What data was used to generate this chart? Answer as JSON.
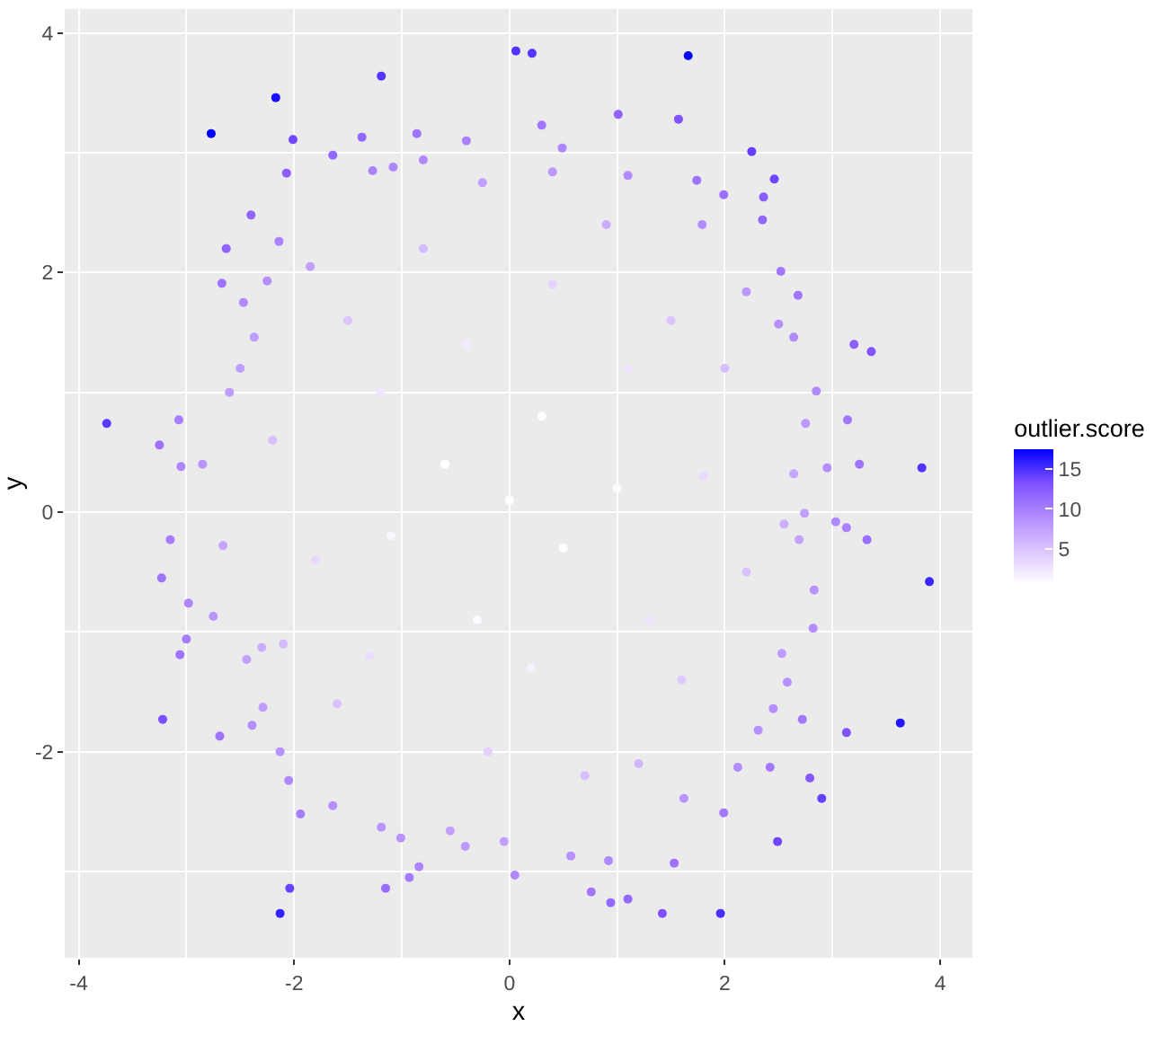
{
  "chart_data": {
    "type": "scatter",
    "xlabel": "x",
    "ylabel": "y",
    "clabel": "outlier.score",
    "xlim": [
      -4.13,
      4.3
    ],
    "ylim": [
      -3.72,
      4.2
    ],
    "xticks": [
      -4,
      -2,
      0,
      2,
      4
    ],
    "yticks": [
      -2,
      0,
      2,
      4
    ],
    "clim": [
      0.6,
      17.5
    ],
    "cticks": [
      5,
      10,
      15
    ],
    "grid": true,
    "marker": "circle",
    "series": [
      {
        "x": [
          0.0,
          0.5,
          -0.6,
          0.3,
          -0.3,
          1.0,
          -1.1,
          0.2,
          -0.4,
          1.3,
          -1.2,
          1.1,
          -1.3,
          1.8,
          -1.8,
          0.4,
          -0.2,
          1.6,
          -1.5,
          1.5,
          -1.6,
          2.2,
          -2.2,
          0.7,
          -0.8,
          2.0,
          -2.1,
          1.2,
          0.9,
          -2.5,
          -3.74,
          -2.77,
          -2.17,
          -1.19,
          0.06,
          0.21,
          -2.01,
          -1.64,
          -2.07,
          -1.37,
          -0.86,
          -0.4,
          0.3,
          -2.63,
          -2.67,
          -2.4,
          -2.14,
          -3.07,
          -3.25,
          -3.05,
          -2.85,
          -2.6,
          -2.47,
          -2.37,
          -2.25,
          -1.85,
          -1.27,
          -1.08,
          -0.8,
          -0.25,
          0.4,
          0.49,
          1.66,
          1.01,
          1.57,
          2.25,
          2.46,
          2.36,
          2.35,
          1.74,
          1.99,
          1.79,
          1.1,
          2.52,
          2.68,
          2.2,
          3.2,
          3.36,
          2.64,
          2.5,
          2.85,
          3.14,
          3.25,
          3.83,
          2.95,
          2.64,
          2.75,
          2.74,
          -3.15,
          -3.23,
          -2.98,
          -2.75,
          -3.0,
          -3.06,
          -3.22,
          -2.69,
          -2.39,
          -2.29,
          -2.13,
          -2.05,
          -1.94,
          -2.04,
          -2.13,
          -1.15,
          -1.64,
          -1.19,
          -1.01,
          -0.84,
          -0.93,
          -0.41,
          0.05,
          -0.05,
          -0.55,
          -2.3,
          -2.44,
          -2.66,
          3.03,
          3.13,
          3.32,
          3.9,
          3.63,
          3.13,
          2.72,
          2.9,
          2.79,
          2.42,
          2.49,
          2.12,
          1.99,
          1.96,
          1.42,
          1.1,
          0.94,
          0.76,
          1.53,
          0.92,
          0.57,
          1.62,
          2.31,
          2.45,
          2.58,
          2.82,
          2.53,
          2.83,
          2.55,
          2.69
        ],
        "values": [
          0.1,
          -0.3,
          0.4,
          0.8,
          -0.9,
          0.2,
          -0.2,
          -1.3,
          1.4,
          -0.9,
          1.0,
          1.2,
          -1.2,
          0.3,
          -0.4,
          1.9,
          -2.0,
          -1.4,
          1.6,
          1.6,
          -1.6,
          -0.5,
          0.6,
          -2.2,
          2.2,
          1.2,
          -1.1,
          -2.1,
          2.4,
          1.2,
          0.74,
          3.16,
          3.46,
          3.64,
          3.85,
          3.83,
          3.11,
          2.98,
          2.83,
          3.13,
          3.16,
          3.1,
          3.23,
          2.2,
          1.91,
          2.48,
          2.26,
          0.77,
          0.56,
          0.38,
          0.4,
          1.0,
          1.75,
          1.46,
          1.93,
          2.05,
          2.85,
          2.88,
          2.94,
          2.75,
          2.84,
          3.04,
          3.81,
          3.32,
          3.28,
          3.01,
          2.78,
          2.63,
          2.44,
          2.77,
          2.65,
          2.4,
          2.81,
          2.01,
          1.81,
          1.84,
          1.4,
          1.34,
          1.46,
          1.57,
          1.01,
          0.77,
          0.4,
          0.37,
          0.37,
          0.32,
          0.74,
          -0.01,
          -0.23,
          -0.55,
          -0.76,
          -0.87,
          -1.06,
          -1.19,
          -1.73,
          -1.87,
          -1.78,
          -1.63,
          -2.0,
          -2.24,
          -2.52,
          -3.14,
          -3.35,
          -3.14,
          -2.45,
          -2.63,
          -2.72,
          -2.96,
          -3.05,
          -2.79,
          -3.03,
          -2.75,
          -2.66,
          -1.13,
          -1.23,
          -0.28,
          -0.08,
          -0.13,
          -0.23,
          -0.58,
          -1.76,
          -1.84,
          -1.73,
          -2.39,
          -2.22,
          -2.13,
          -2.75,
          -2.13,
          -2.51,
          -3.35,
          -3.35,
          -3.23,
          -3.26,
          -3.17,
          -2.93,
          -2.91,
          -2.87,
          -2.39,
          -1.82,
          -1.64,
          -1.42,
          -0.97,
          -1.18,
          -0.65,
          -0.1,
          -0.23
        ],
        "cvalues": [
          0.6,
          0.6,
          0.6,
          0.7,
          0.9,
          1.0,
          1.3,
          1.7,
          2.1,
          2.5,
          2.4,
          2.7,
          3.1,
          3.3,
          3.4,
          3.8,
          4.0,
          4.5,
          4.8,
          4.8,
          5.1,
          5.1,
          5.2,
          5.3,
          5.5,
          5.4,
          5.6,
          5.9,
          6.6,
          7.7,
          14.5,
          17.5,
          16.7,
          14.7,
          14.8,
          14.7,
          13.7,
          11.6,
          12.3,
          11.7,
          10.7,
          9.8,
          10.5,
          11.8,
          10.8,
          11.9,
          9.7,
          10.0,
          10.9,
          9.4,
          8.3,
          7.8,
          9.2,
          7.7,
          8.8,
          7.6,
          9.7,
          9.5,
          9.3,
          7.6,
          8.2,
          9.5,
          17.3,
          12.0,
          13.2,
          14.1,
          13.8,
          12.5,
          11.5,
          10.7,
          11.0,
          9.0,
          9.1,
          10.4,
          10.5,
          8.2,
          12.2,
          13.1,
          9.1,
          8.7,
          9.1,
          10.5,
          10.7,
          14.8,
          8.8,
          7.1,
          8.1,
          7.5,
          10.0,
          10.7,
          9.5,
          8.3,
          10.1,
          10.8,
          13.4,
          10.7,
          8.9,
          7.9,
          8.5,
          9.2,
          10.1,
          14.0,
          15.8,
          11.2,
          8.7,
          8.3,
          8.4,
          9.5,
          10.2,
          8.0,
          9.2,
          7.6,
          7.4,
          6.6,
          7.5,
          7.2,
          9.2,
          9.8,
          11.1,
          15.5,
          16.3,
          13.2,
          10.4,
          14.1,
          12.7,
          10.4,
          13.8,
          9.0,
          10.3,
          15.1,
          13.2,
          11.6,
          11.5,
          10.6,
          10.9,
          9.3,
          8.6,
          8.3,
          8.7,
          8.7,
          8.7,
          8.9,
          7.8,
          8.4,
          6.5,
          7.3
        ]
      }
    ]
  }
}
